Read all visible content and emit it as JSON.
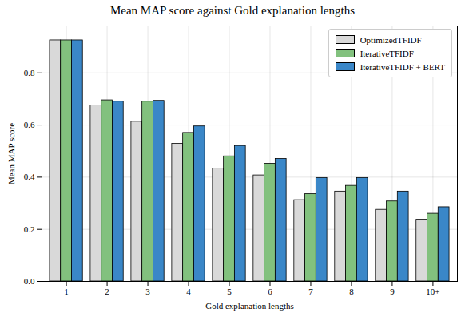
{
  "chart_data": {
    "type": "bar",
    "title": "Mean MAP score against Gold explanation lengths",
    "x_label": "Gold explanation lengths",
    "y_label": "Mean MAP score",
    "categories": [
      "1",
      "2",
      "3",
      "4",
      "5",
      "6",
      "7",
      "8",
      "9",
      "10+"
    ],
    "series": [
      {
        "name": "OptimizedTFIDF",
        "color": "#d9d9d9",
        "values": [
          0.925,
          0.675,
          0.613,
          0.528,
          0.433,
          0.407,
          0.312,
          0.345,
          0.275,
          0.237
        ]
      },
      {
        "name": "IterativeTFIDF",
        "color": "#82c17e",
        "values": [
          0.925,
          0.695,
          0.69,
          0.57,
          0.48,
          0.452,
          0.335,
          0.367,
          0.307,
          0.26
        ]
      },
      {
        "name": "IterativeTFIDF + BERT",
        "color": "#3a87c8",
        "values": [
          0.925,
          0.69,
          0.693,
          0.595,
          0.52,
          0.47,
          0.397,
          0.397,
          0.345,
          0.285
        ]
      }
    ],
    "ylim": [
      0,
      0.98
    ],
    "yticks": [
      {
        "value": 0,
        "label": "0.0"
      },
      0.2,
      0.4,
      0.6,
      0.8
    ],
    "grid": true,
    "legend": "upper right"
  }
}
